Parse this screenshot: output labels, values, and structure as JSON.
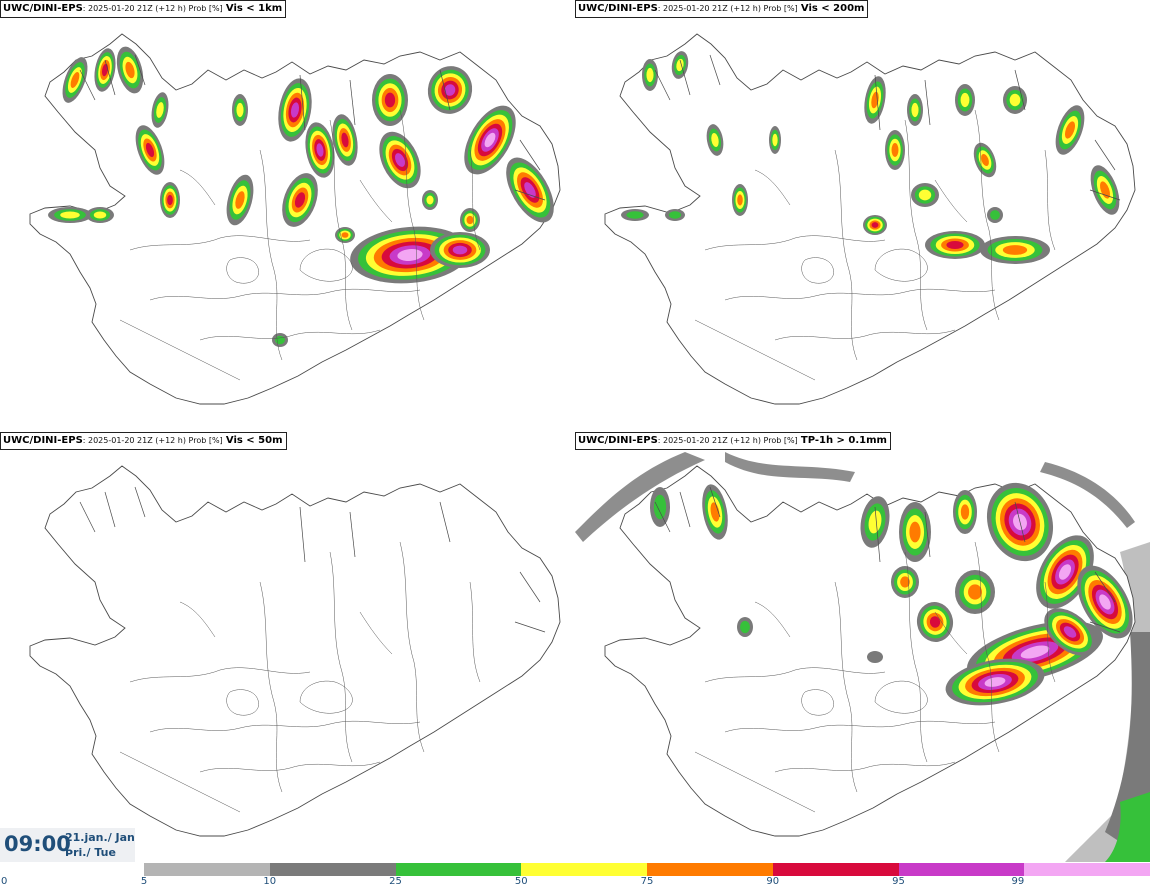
{
  "panels": [
    {
      "model": "UWC/DINI-EPS",
      "meta": ": 2025-01-20 21Z (+12 h) Prob [%]",
      "variable": "Vis < 1km"
    },
    {
      "model": "UWC/DINI-EPS",
      "meta": ": 2025-01-20 21Z (+12 h) Prob [%]",
      "variable": "Vis < 200m"
    },
    {
      "model": "UWC/DINI-EPS",
      "meta": ": 2025-01-20 21Z (+12 h) Prob [%]",
      "variable": "Vis < 50m"
    },
    {
      "model": "UWC/DINI-EPS",
      "meta": ": 2025-01-20 21Z (+12 h) Prob [%]",
      "variable": "TP-1h > 0.1mm"
    }
  ],
  "valid_time": {
    "time": "09:00",
    "date_line1": "21.jan./ Jan",
    "date_line2": "Þri./ Tue"
  },
  "colorbar": {
    "ticks": [
      "0",
      "5",
      "10",
      "25",
      "50",
      "75",
      "90",
      "95",
      "99"
    ],
    "colors": [
      "#b4b4b4",
      "#7a7a7a",
      "#36c13a",
      "#ffff33",
      "#ff7b00",
      "#d80a3c",
      "#c83ac8",
      "#f3a6f3"
    ]
  }
}
